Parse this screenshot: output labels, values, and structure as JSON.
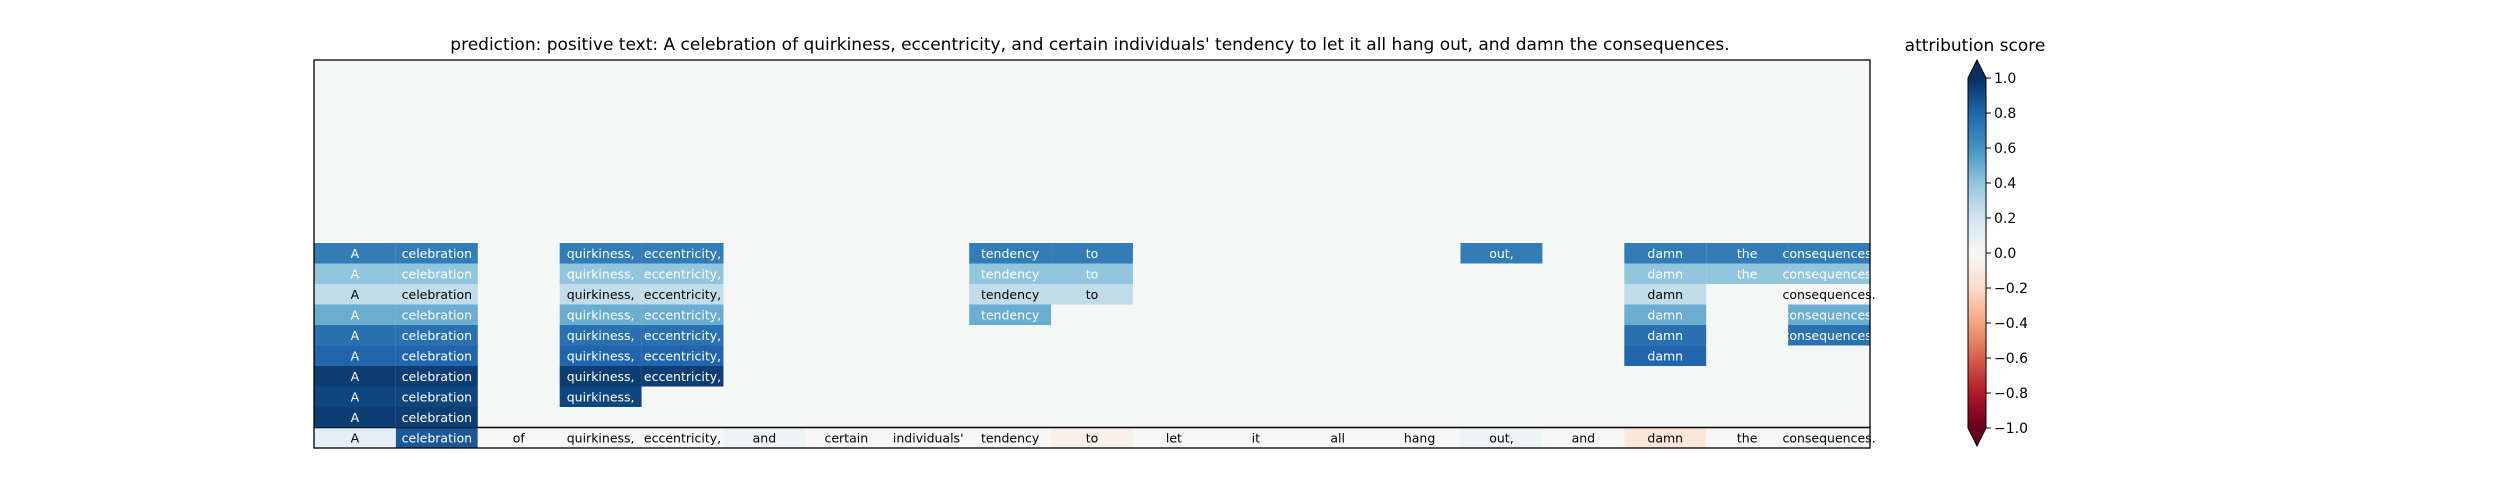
{
  "chart_data": {
    "type": "heatmap",
    "title": "prediction:  positive     text:  A celebration of quirkiness, eccentricity, and certain individuals' tendency to let it all hang out, and damn the consequences.",
    "tokens": [
      "A",
      "celebration",
      "of",
      "quirkiness,",
      "eccentricity,",
      "and",
      "certain",
      "individuals'",
      "tendency",
      "to",
      "let",
      "it",
      "all",
      "hang",
      "out,",
      "and",
      "damn",
      "the",
      "consequences."
    ],
    "base_row_scores": [
      0.1,
      0.85,
      0.0,
      0.0,
      0.0,
      0.05,
      0.0,
      0.0,
      0.0,
      -0.05,
      0.0,
      0.0,
      0.0,
      0.0,
      0.05,
      0.0,
      -0.12,
      0.0,
      0.02
    ],
    "stack_rows": [
      [
        {
          "col": 0,
          "text": "A",
          "score": 0.95
        },
        {
          "col": 1,
          "text": "celebration",
          "score": 0.95
        }
      ],
      [
        {
          "col": 0,
          "text": "A",
          "score": 0.92
        },
        {
          "col": 1,
          "text": "celebration",
          "score": 0.92
        },
        {
          "col": 3,
          "text": "quirkiness,",
          "score": 0.92
        }
      ],
      [
        {
          "col": 0,
          "text": "A",
          "score": 0.95
        },
        {
          "col": 1,
          "text": "celebration",
          "score": 0.95
        },
        {
          "col": 3,
          "text": "quirkiness,",
          "score": 0.95
        },
        {
          "col": 4,
          "text": "eccentricity,",
          "score": 0.95
        }
      ],
      [
        {
          "col": 0,
          "text": "A",
          "score": 0.8
        },
        {
          "col": 1,
          "text": "celebration",
          "score": 0.8
        },
        {
          "col": 3,
          "text": "quirkiness,",
          "score": 0.8
        },
        {
          "col": 4,
          "text": "eccentricity,",
          "score": 0.8
        },
        {
          "col": 16,
          "text": "damn",
          "score": 0.8
        }
      ],
      [
        {
          "col": 0,
          "text": "A",
          "score": 0.75
        },
        {
          "col": 1,
          "text": "celebration",
          "score": 0.75
        },
        {
          "col": 3,
          "text": "quirkiness,",
          "score": 0.75
        },
        {
          "col": 4,
          "text": "eccentricity,",
          "score": 0.75
        },
        {
          "col": 16,
          "text": "damn",
          "score": 0.75
        },
        {
          "col": 18,
          "text": "consequences.",
          "score": 0.75
        }
      ],
      [
        {
          "col": 0,
          "text": "A",
          "score": 0.5
        },
        {
          "col": 1,
          "text": "celebration",
          "score": 0.5
        },
        {
          "col": 3,
          "text": "quirkiness,",
          "score": 0.5
        },
        {
          "col": 4,
          "text": "eccentricity,",
          "score": 0.5
        },
        {
          "col": 8,
          "text": "tendency",
          "score": 0.5
        },
        {
          "col": 16,
          "text": "damn",
          "score": 0.5
        },
        {
          "col": 18,
          "text": "consequences.",
          "score": 0.5
        }
      ],
      [
        {
          "col": 0,
          "text": "A",
          "score": 0.25
        },
        {
          "col": 1,
          "text": "celebration",
          "score": 0.25
        },
        {
          "col": 3,
          "text": "quirkiness,",
          "score": 0.25
        },
        {
          "col": 4,
          "text": "eccentricity,",
          "score": 0.25
        },
        {
          "col": 8,
          "text": "tendency",
          "score": 0.25
        },
        {
          "col": 9,
          "text": "to",
          "score": 0.25
        },
        {
          "col": 16,
          "text": "damn",
          "score": 0.25
        },
        {
          "col": 18,
          "text": "consequences.",
          "score": 0.0
        }
      ],
      [
        {
          "col": 0,
          "text": "A",
          "score": 0.4
        },
        {
          "col": 1,
          "text": "celebration",
          "score": 0.4
        },
        {
          "col": 3,
          "text": "quirkiness,",
          "score": 0.4
        },
        {
          "col": 4,
          "text": "eccentricity,",
          "score": 0.4
        },
        {
          "col": 8,
          "text": "tendency",
          "score": 0.4
        },
        {
          "col": 9,
          "text": "to",
          "score": 0.4
        },
        {
          "col": 16,
          "text": "damn",
          "score": 0.4
        },
        {
          "col": 17,
          "text": "the",
          "score": 0.4
        },
        {
          "col": 18,
          "text": "consequences.",
          "score": 0.4
        }
      ],
      [
        {
          "col": 0,
          "text": "A",
          "score": 0.7
        },
        {
          "col": 1,
          "text": "celebration",
          "score": 0.7
        },
        {
          "col": 3,
          "text": "quirkiness,",
          "score": 0.7
        },
        {
          "col": 4,
          "text": "eccentricity,",
          "score": 0.7
        },
        {
          "col": 8,
          "text": "tendency",
          "score": 0.7
        },
        {
          "col": 9,
          "text": "to",
          "score": 0.7
        },
        {
          "col": 14,
          "text": "out,",
          "score": 0.7
        },
        {
          "col": 16,
          "text": "damn",
          "score": 0.7
        },
        {
          "col": 17,
          "text": "the",
          "score": 0.7
        },
        {
          "col": 18,
          "text": "consequences.",
          "score": 0.7
        }
      ]
    ],
    "colorbar": {
      "label": "attribution score",
      "vmin": -1.0,
      "vmax": 1.0,
      "ticks": [
        1.0,
        0.8,
        0.6,
        0.4,
        0.2,
        0.0,
        -0.2,
        -0.4,
        -0.6,
        -0.8,
        -1.0
      ],
      "tick_labels": [
        "1.0",
        "0.8",
        "0.6",
        "0.4",
        "0.2",
        "0.0",
        "−0.2",
        "−0.4",
        "−0.6",
        "−0.8",
        "−1.0"
      ]
    },
    "colormap": "RdBu",
    "empty_color": "#f5f6f6",
    "grid": false
  }
}
